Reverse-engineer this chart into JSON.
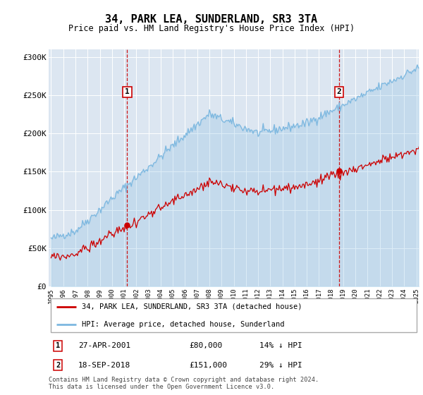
{
  "title": "34, PARK LEA, SUNDERLAND, SR3 3TA",
  "subtitle": "Price paid vs. HM Land Registry's House Price Index (HPI)",
  "ylim": [
    0,
    310000
  ],
  "yticks": [
    0,
    50000,
    100000,
    150000,
    200000,
    250000,
    300000
  ],
  "ytick_labels": [
    "£0",
    "£50K",
    "£100K",
    "£150K",
    "£200K",
    "£250K",
    "£300K"
  ],
  "bg_color": "#dce6f1",
  "hpi_color": "#7db8e0",
  "price_color": "#cc0000",
  "dashed_color": "#cc0000",
  "legend_label_price": "34, PARK LEA, SUNDERLAND, SR3 3TA (detached house)",
  "legend_label_hpi": "HPI: Average price, detached house, Sunderland",
  "footer": "Contains HM Land Registry data © Crown copyright and database right 2024.\nThis data is licensed under the Open Government Licence v3.0.",
  "x_start_year": 1995,
  "x_end_year": 2025,
  "sale1_year": 2001,
  "sale1_month": 4,
  "sale1_price": 80000,
  "sale2_year": 2018,
  "sale2_month": 9,
  "sale2_price": 151000
}
